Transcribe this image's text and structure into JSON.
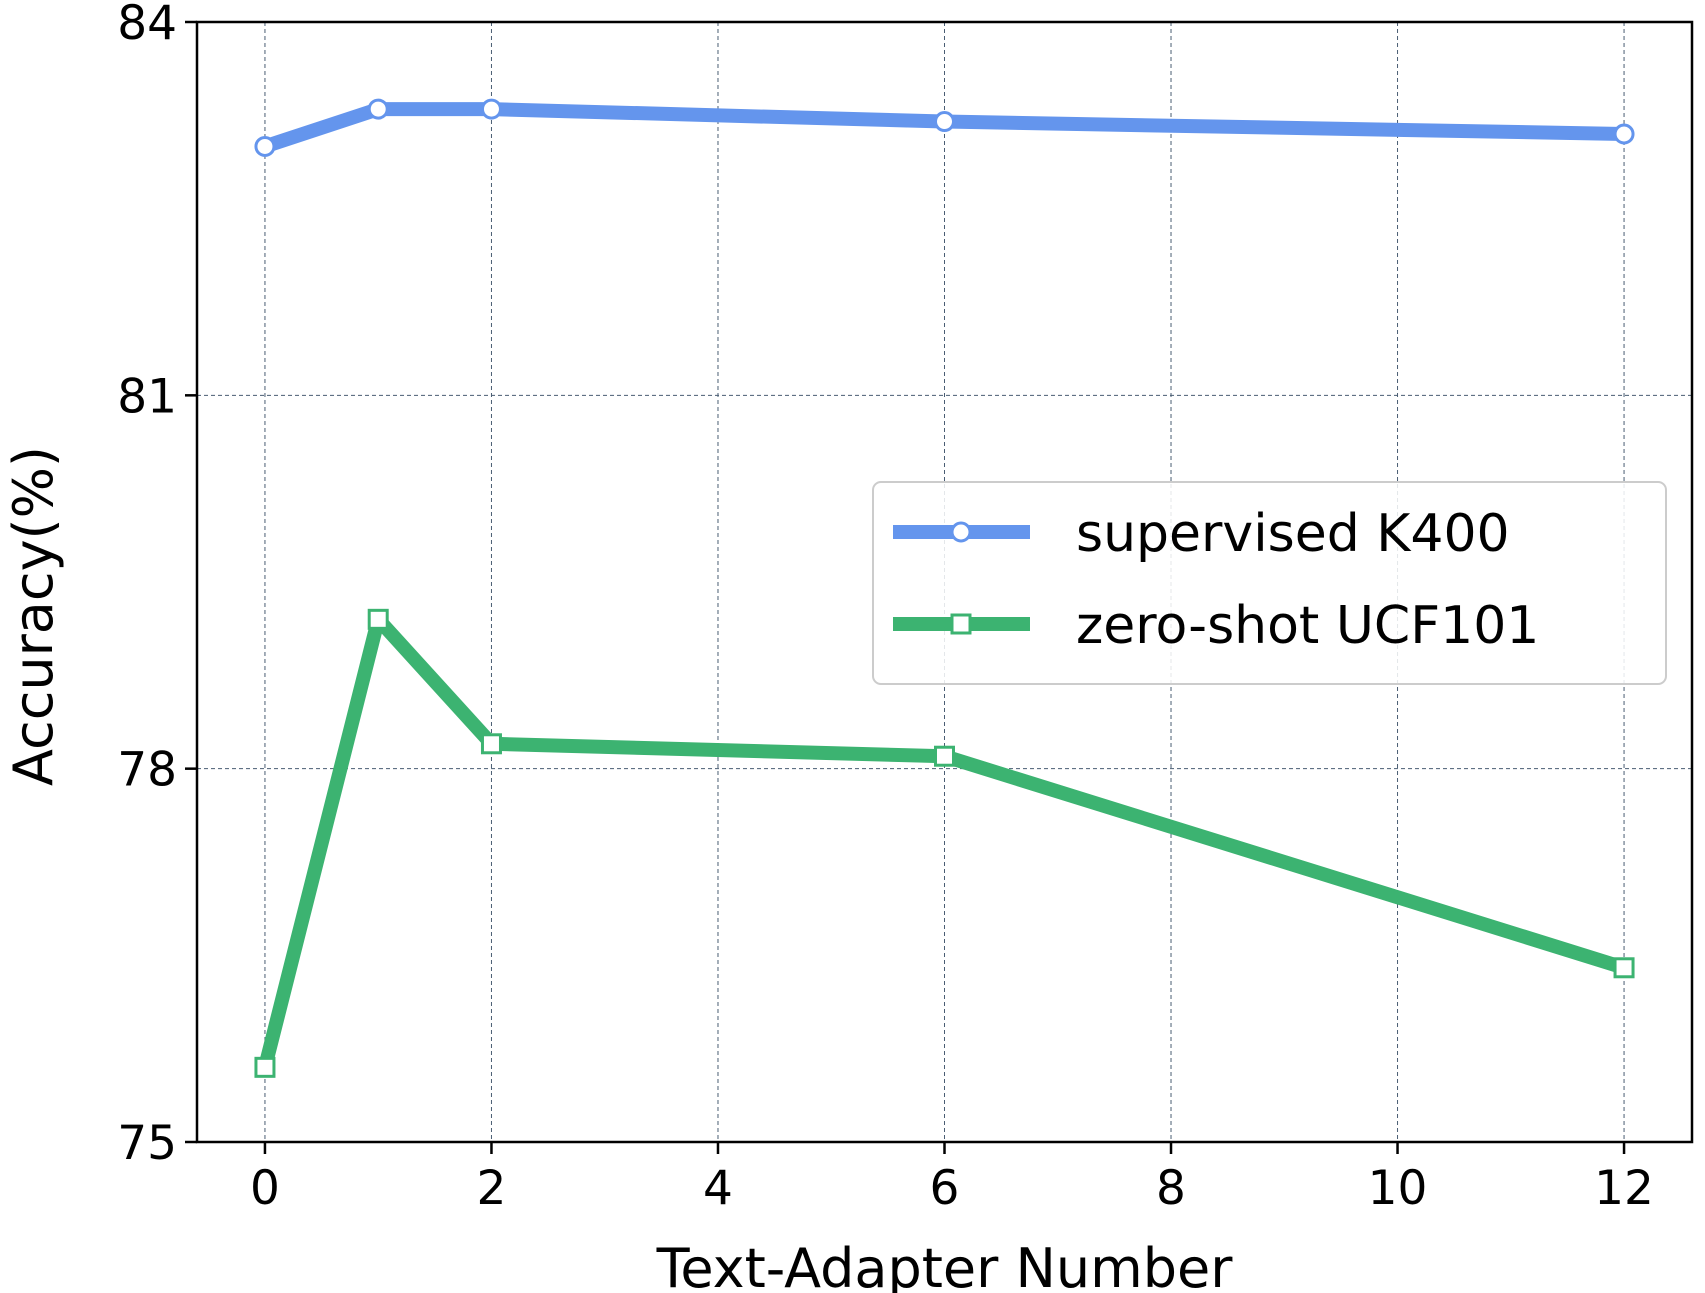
{
  "chart_data": {
    "type": "line",
    "title": "",
    "xlabel": "Text-Adapter Number",
    "ylabel": "Accuracy(%)",
    "xlim": [
      -0.6,
      12.6
    ],
    "ylim": [
      75,
      84
    ],
    "xticks": [
      0,
      2,
      4,
      6,
      8,
      10,
      12
    ],
    "yticks": [
      75,
      78,
      81,
      84
    ],
    "grid": true,
    "legend_position": "center-right",
    "series": [
      {
        "name": "supervised K400",
        "color": "#6495ED",
        "marker": "circle",
        "x": [
          0,
          1,
          2,
          6,
          12
        ],
        "y": [
          83.0,
          83.3,
          83.3,
          83.2,
          83.1
        ]
      },
      {
        "name": "zero-shot UCF101",
        "color": "#3CB371",
        "marker": "square",
        "x": [
          0,
          1,
          2,
          6,
          12
        ],
        "y": [
          75.6,
          79.2,
          78.2,
          78.1,
          76.4
        ]
      }
    ]
  }
}
